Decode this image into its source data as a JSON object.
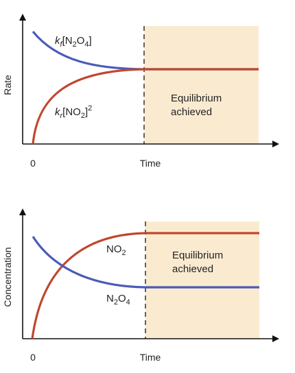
{
  "colors": {
    "forward_curve": "#4a5bb8",
    "reverse_curve": "#c0472e",
    "equilibrium_fill": "#faebd0",
    "axis": "#111111"
  },
  "top_panel": {
    "y_axis_label": "Rate",
    "x_axis_label": "Time",
    "origin_label": "0",
    "forward_label": {
      "k": "k",
      "sub_f": "f",
      "bracket_open": "[N",
      "sub_2": "2",
      "o": "O",
      "sub_4": "4",
      "bracket_close": "]"
    },
    "reverse_label": {
      "k": "k",
      "sub_r": "r",
      "bracket_open": "[NO",
      "sub_2": "2",
      "bracket_close": "]",
      "sup_2": "2"
    },
    "equilibrium_line1": "Equilibrium",
    "equilibrium_line2": "achieved"
  },
  "bottom_panel": {
    "y_axis_label": "Concentration",
    "x_axis_label": "Time",
    "origin_label": "0",
    "no2_label": {
      "base": "NO",
      "sub_2": "2"
    },
    "n2o4_label": {
      "n": "N",
      "sub_2": "2",
      "o": "O",
      "sub_4": "4"
    },
    "equilibrium_line1": "Equilibrium",
    "equilibrium_line2": "achieved"
  }
}
